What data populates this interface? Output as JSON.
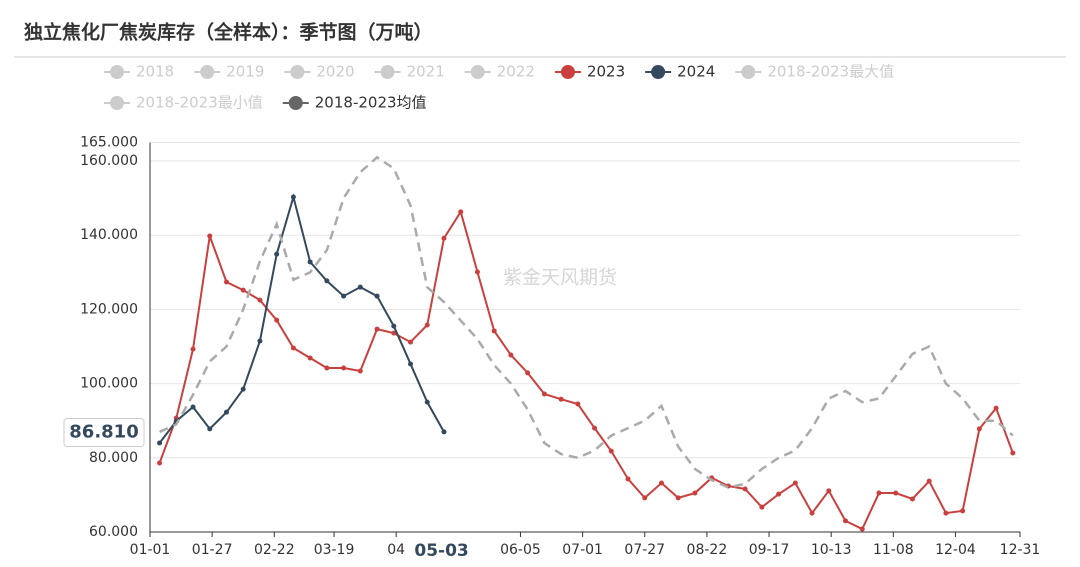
{
  "chart_data": {
    "type": "line",
    "title": "独立焦化厂焦炭库存（全样本）：季节图（万吨）",
    "watermark": "紫金天风期货",
    "x": [
      4,
      11,
      18,
      25,
      32,
      39,
      46,
      53,
      60,
      67,
      74,
      81,
      88,
      95,
      102,
      109,
      116,
      123,
      130,
      137,
      144,
      151,
      158,
      165,
      172,
      179,
      186,
      193,
      200,
      207,
      214,
      221,
      228,
      235,
      242,
      249,
      256,
      263,
      270,
      277,
      284,
      291,
      298,
      305,
      312,
      319,
      326,
      333,
      340,
      347,
      354,
      361
    ],
    "xlim": [
      0,
      364
    ],
    "xticks": [
      {
        "value": 0,
        "label": "01-01"
      },
      {
        "value": 26,
        "label": "01-27"
      },
      {
        "value": 52,
        "label": "02-22"
      },
      {
        "value": 77,
        "label": "03-19"
      },
      {
        "value": 103,
        "label": "04"
      },
      {
        "value": 155,
        "label": "06-05"
      },
      {
        "value": 181,
        "label": "07-01"
      },
      {
        "value": 207,
        "label": "07-27"
      },
      {
        "value": 233,
        "label": "08-22"
      },
      {
        "value": 259,
        "label": "09-17"
      },
      {
        "value": 285,
        "label": "10-13"
      },
      {
        "value": 311,
        "label": "11-08"
      },
      {
        "value": 337,
        "label": "12-04"
      },
      {
        "value": 364,
        "label": "12-31"
      }
    ],
    "ylim": [
      60,
      165
    ],
    "yticks": [
      {
        "value": 60,
        "label": "60.000"
      },
      {
        "value": 80,
        "label": "80.000"
      },
      {
        "value": 100,
        "label": "100.000"
      },
      {
        "value": 120,
        "label": "120.000"
      },
      {
        "value": 140,
        "label": "140.000"
      },
      {
        "value": 160,
        "label": "160.000"
      },
      {
        "value": 165,
        "label": "165.000"
      }
    ],
    "grid": true,
    "pointer": {
      "x": {
        "value": 122,
        "label": "05-03"
      },
      "y": {
        "value": 86.81,
        "label": "86.810"
      }
    },
    "series": [
      {
        "name": "2018",
        "visible": false
      },
      {
        "name": "2019",
        "visible": false
      },
      {
        "name": "2020",
        "visible": false
      },
      {
        "name": "2021",
        "visible": false
      },
      {
        "name": "2022",
        "visible": false
      },
      {
        "name": "2023",
        "visible": true,
        "color": "#c9403e",
        "values": [
          78.6,
          90.7,
          109.3,
          139.8,
          127.4,
          125.2,
          122.5,
          117.1,
          109.6,
          106.9,
          104.2,
          104.2,
          103.4,
          114.7,
          113.6,
          111.2,
          115.8,
          139.2,
          146.3,
          130.1,
          114.2,
          107.7,
          102.9,
          97.2,
          95.8,
          94.5,
          88.0,
          81.8,
          74.3,
          69.2,
          73.2,
          69.2,
          70.5,
          74.6,
          72.4,
          71.6,
          66.7,
          70.2,
          73.2,
          65.1,
          71.1,
          63.0,
          60.8,
          70.5,
          70.5,
          68.9,
          73.7,
          65.1,
          65.7,
          87.8,
          93.4,
          81.3
        ]
      },
      {
        "name": "2024",
        "visible": true,
        "color": "#34495e",
        "values": [
          84.0,
          89.9,
          93.7,
          87.8,
          92.3,
          98.5,
          111.5,
          134.9,
          150.3,
          132.8,
          127.7,
          123.6,
          126.0,
          123.6,
          115.5,
          105.3,
          95.0,
          87.0,
          null,
          null,
          null,
          null,
          null,
          null,
          null,
          null,
          null,
          null,
          null,
          null,
          null,
          null,
          null,
          null,
          null,
          null,
          null,
          null,
          null,
          null,
          null,
          null,
          null,
          null,
          null,
          null,
          null,
          null,
          null,
          null,
          null,
          null
        ]
      },
      {
        "name": "2018-2023最大值",
        "visible": false
      },
      {
        "name": "2018-2023最小值",
        "visible": false
      },
      {
        "name": "2018-2023均值",
        "visible": true,
        "color": "#666666",
        "line_color": "#aaaaaa",
        "dashed": true,
        "values": [
          87,
          89,
          97,
          106,
          110,
          120,
          133,
          143,
          128,
          130,
          136,
          150,
          157,
          161,
          158,
          148,
          126,
          122,
          117,
          112,
          105,
          100,
          93,
          84,
          81,
          80,
          82,
          86,
          88,
          90,
          94,
          83,
          77,
          74,
          72,
          73,
          77,
          80,
          82,
          88,
          96,
          98,
          95,
          96,
          102,
          108,
          110,
          100,
          96,
          90,
          90,
          86
        ]
      }
    ]
  }
}
